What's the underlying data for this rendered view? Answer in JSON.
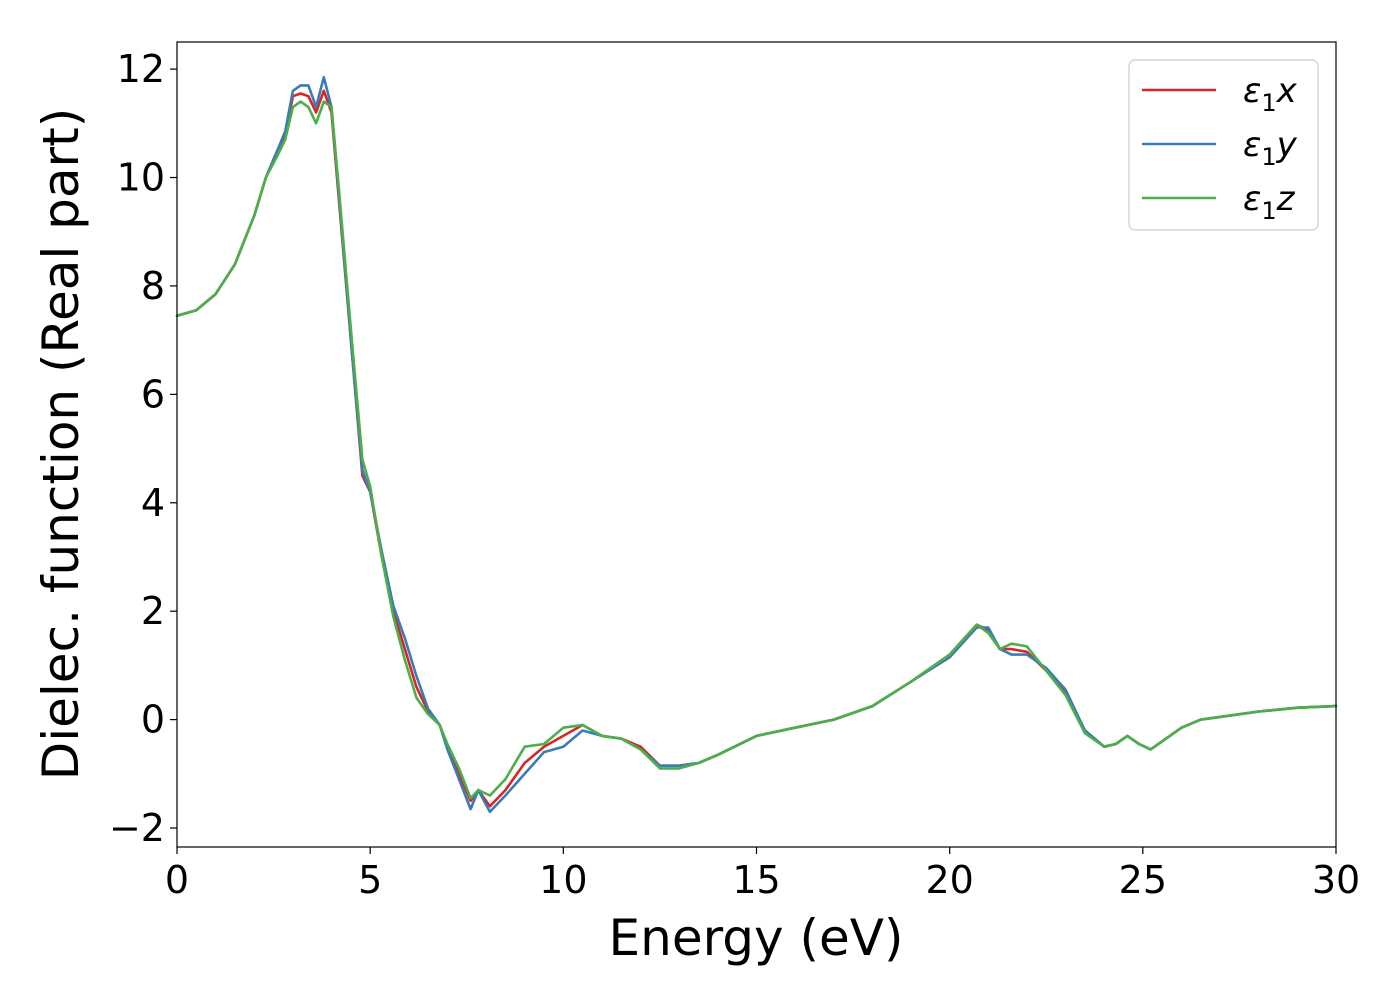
{
  "chart_data": {
    "type": "line",
    "xlabel": "Energy (eV)",
    "ylabel": "Dielec. function (Real part)",
    "xlim": [
      0,
      30
    ],
    "ylim": [
      -2.35,
      12.5
    ],
    "xticks": [
      0,
      5,
      10,
      15,
      20,
      25,
      30
    ],
    "yticks": [
      -2,
      0,
      2,
      4,
      6,
      8,
      10,
      12
    ],
    "xtick_labels": [
      "0",
      "5",
      "10",
      "15",
      "20",
      "25",
      "30"
    ],
    "ytick_labels": [
      "−2",
      "0",
      "2",
      "4",
      "6",
      "8",
      "10",
      "12"
    ],
    "grid": false,
    "legend_position": "top-right",
    "series": [
      {
        "name": "ε₁x",
        "legend_main": "ε",
        "legend_sub": "1",
        "legend_tail": "x",
        "color": "#d62728",
        "x": [
          0,
          0.5,
          1,
          1.5,
          2,
          2.3,
          2.6,
          2.8,
          3.0,
          3.2,
          3.4,
          3.6,
          3.8,
          4.0,
          4.2,
          4.5,
          4.8,
          5.0,
          5.3,
          5.6,
          5.9,
          6.2,
          6.5,
          6.8,
          7.0,
          7.3,
          7.6,
          7.8,
          8.1,
          8.5,
          9.0,
          9.5,
          10.0,
          10.5,
          11.0,
          11.5,
          12.0,
          12.5,
          13.0,
          13.5,
          14.0,
          15.0,
          16.0,
          17.0,
          18.0,
          19.0,
          20.0,
          20.7,
          21.0,
          21.3,
          21.6,
          22.0,
          22.5,
          23.0,
          23.5,
          24.0,
          24.3,
          24.6,
          24.9,
          25.2,
          25.5,
          26.0,
          26.5,
          27.0,
          28.0,
          29.0,
          30.0
        ],
        "y": [
          7.45,
          7.55,
          7.85,
          8.4,
          9.3,
          10.0,
          10.5,
          10.8,
          11.5,
          11.55,
          11.5,
          11.2,
          11.6,
          11.2,
          9.5,
          7.0,
          4.5,
          4.2,
          3.0,
          2.0,
          1.3,
          0.6,
          0.15,
          -0.1,
          -0.5,
          -1.0,
          -1.5,
          -1.3,
          -1.6,
          -1.3,
          -0.8,
          -0.5,
          -0.3,
          -0.1,
          -0.3,
          -0.35,
          -0.5,
          -0.85,
          -0.85,
          -0.8,
          -0.65,
          -0.3,
          -0.15,
          0.0,
          0.25,
          0.7,
          1.2,
          1.75,
          1.65,
          1.3,
          1.3,
          1.25,
          0.9,
          0.5,
          -0.2,
          -0.5,
          -0.45,
          -0.3,
          -0.45,
          -0.55,
          -0.4,
          -0.15,
          0.0,
          0.05,
          0.15,
          0.22,
          0.25
        ]
      },
      {
        "name": "ε₁y",
        "legend_main": "ε",
        "legend_sub": "1",
        "legend_tail": "y",
        "color": "#3a7bb8",
        "x": [
          0,
          0.5,
          1,
          1.5,
          2,
          2.3,
          2.6,
          2.8,
          3.0,
          3.2,
          3.4,
          3.6,
          3.8,
          4.0,
          4.2,
          4.5,
          4.8,
          5.0,
          5.3,
          5.6,
          5.9,
          6.2,
          6.5,
          6.8,
          7.0,
          7.3,
          7.6,
          7.8,
          8.1,
          8.5,
          9.0,
          9.5,
          10.0,
          10.5,
          11.0,
          11.5,
          12.0,
          12.5,
          13.0,
          13.5,
          14.0,
          15.0,
          16.0,
          17.0,
          18.0,
          19.0,
          20.0,
          20.7,
          21.0,
          21.3,
          21.6,
          22.0,
          22.5,
          23.0,
          23.5,
          24.0,
          24.3,
          24.6,
          24.9,
          25.2,
          25.5,
          26.0,
          26.5,
          27.0,
          28.0,
          29.0,
          30.0
        ],
        "y": [
          7.45,
          7.55,
          7.85,
          8.4,
          9.3,
          10.0,
          10.5,
          10.85,
          11.6,
          11.7,
          11.7,
          11.3,
          11.85,
          11.3,
          9.6,
          7.0,
          4.6,
          4.2,
          3.1,
          2.1,
          1.5,
          0.8,
          0.2,
          -0.1,
          -0.55,
          -1.1,
          -1.65,
          -1.3,
          -1.7,
          -1.4,
          -1.0,
          -0.6,
          -0.5,
          -0.2,
          -0.3,
          -0.35,
          -0.55,
          -0.85,
          -0.85,
          -0.8,
          -0.65,
          -0.3,
          -0.15,
          0.0,
          0.25,
          0.7,
          1.15,
          1.7,
          1.7,
          1.3,
          1.2,
          1.2,
          0.95,
          0.55,
          -0.2,
          -0.5,
          -0.45,
          -0.3,
          -0.45,
          -0.55,
          -0.4,
          -0.15,
          0.0,
          0.05,
          0.15,
          0.22,
          0.25
        ]
      },
      {
        "name": "ε₁z",
        "legend_main": "ε",
        "legend_sub": "1",
        "legend_tail": "z",
        "color": "#4daf4a",
        "x": [
          0,
          0.5,
          1,
          1.5,
          2,
          2.3,
          2.6,
          2.8,
          3.0,
          3.2,
          3.4,
          3.6,
          3.8,
          4.0,
          4.2,
          4.5,
          4.8,
          5.0,
          5.3,
          5.6,
          5.9,
          6.2,
          6.5,
          6.8,
          7.0,
          7.3,
          7.6,
          7.8,
          8.1,
          8.5,
          9.0,
          9.5,
          10.0,
          10.5,
          11.0,
          11.5,
          12.0,
          12.5,
          13.0,
          13.5,
          14.0,
          15.0,
          16.0,
          17.0,
          18.0,
          19.0,
          20.0,
          20.7,
          21.0,
          21.3,
          21.6,
          22.0,
          22.5,
          23.0,
          23.5,
          24.0,
          24.3,
          24.6,
          24.9,
          25.2,
          25.5,
          26.0,
          26.5,
          27.0,
          28.0,
          29.0,
          30.0
        ],
        "y": [
          7.45,
          7.55,
          7.85,
          8.4,
          9.3,
          10.0,
          10.4,
          10.7,
          11.3,
          11.4,
          11.3,
          11.0,
          11.4,
          11.3,
          9.7,
          7.2,
          4.8,
          4.3,
          3.0,
          1.9,
          1.1,
          0.4,
          0.1,
          -0.1,
          -0.45,
          -0.9,
          -1.45,
          -1.3,
          -1.4,
          -1.1,
          -0.5,
          -0.45,
          -0.15,
          -0.1,
          -0.3,
          -0.35,
          -0.55,
          -0.9,
          -0.9,
          -0.8,
          -0.65,
          -0.3,
          -0.15,
          0.0,
          0.25,
          0.7,
          1.2,
          1.75,
          1.6,
          1.3,
          1.4,
          1.35,
          0.9,
          0.45,
          -0.25,
          -0.5,
          -0.45,
          -0.3,
          -0.45,
          -0.55,
          -0.4,
          -0.15,
          0.0,
          0.05,
          0.15,
          0.22,
          0.25
        ]
      }
    ]
  }
}
